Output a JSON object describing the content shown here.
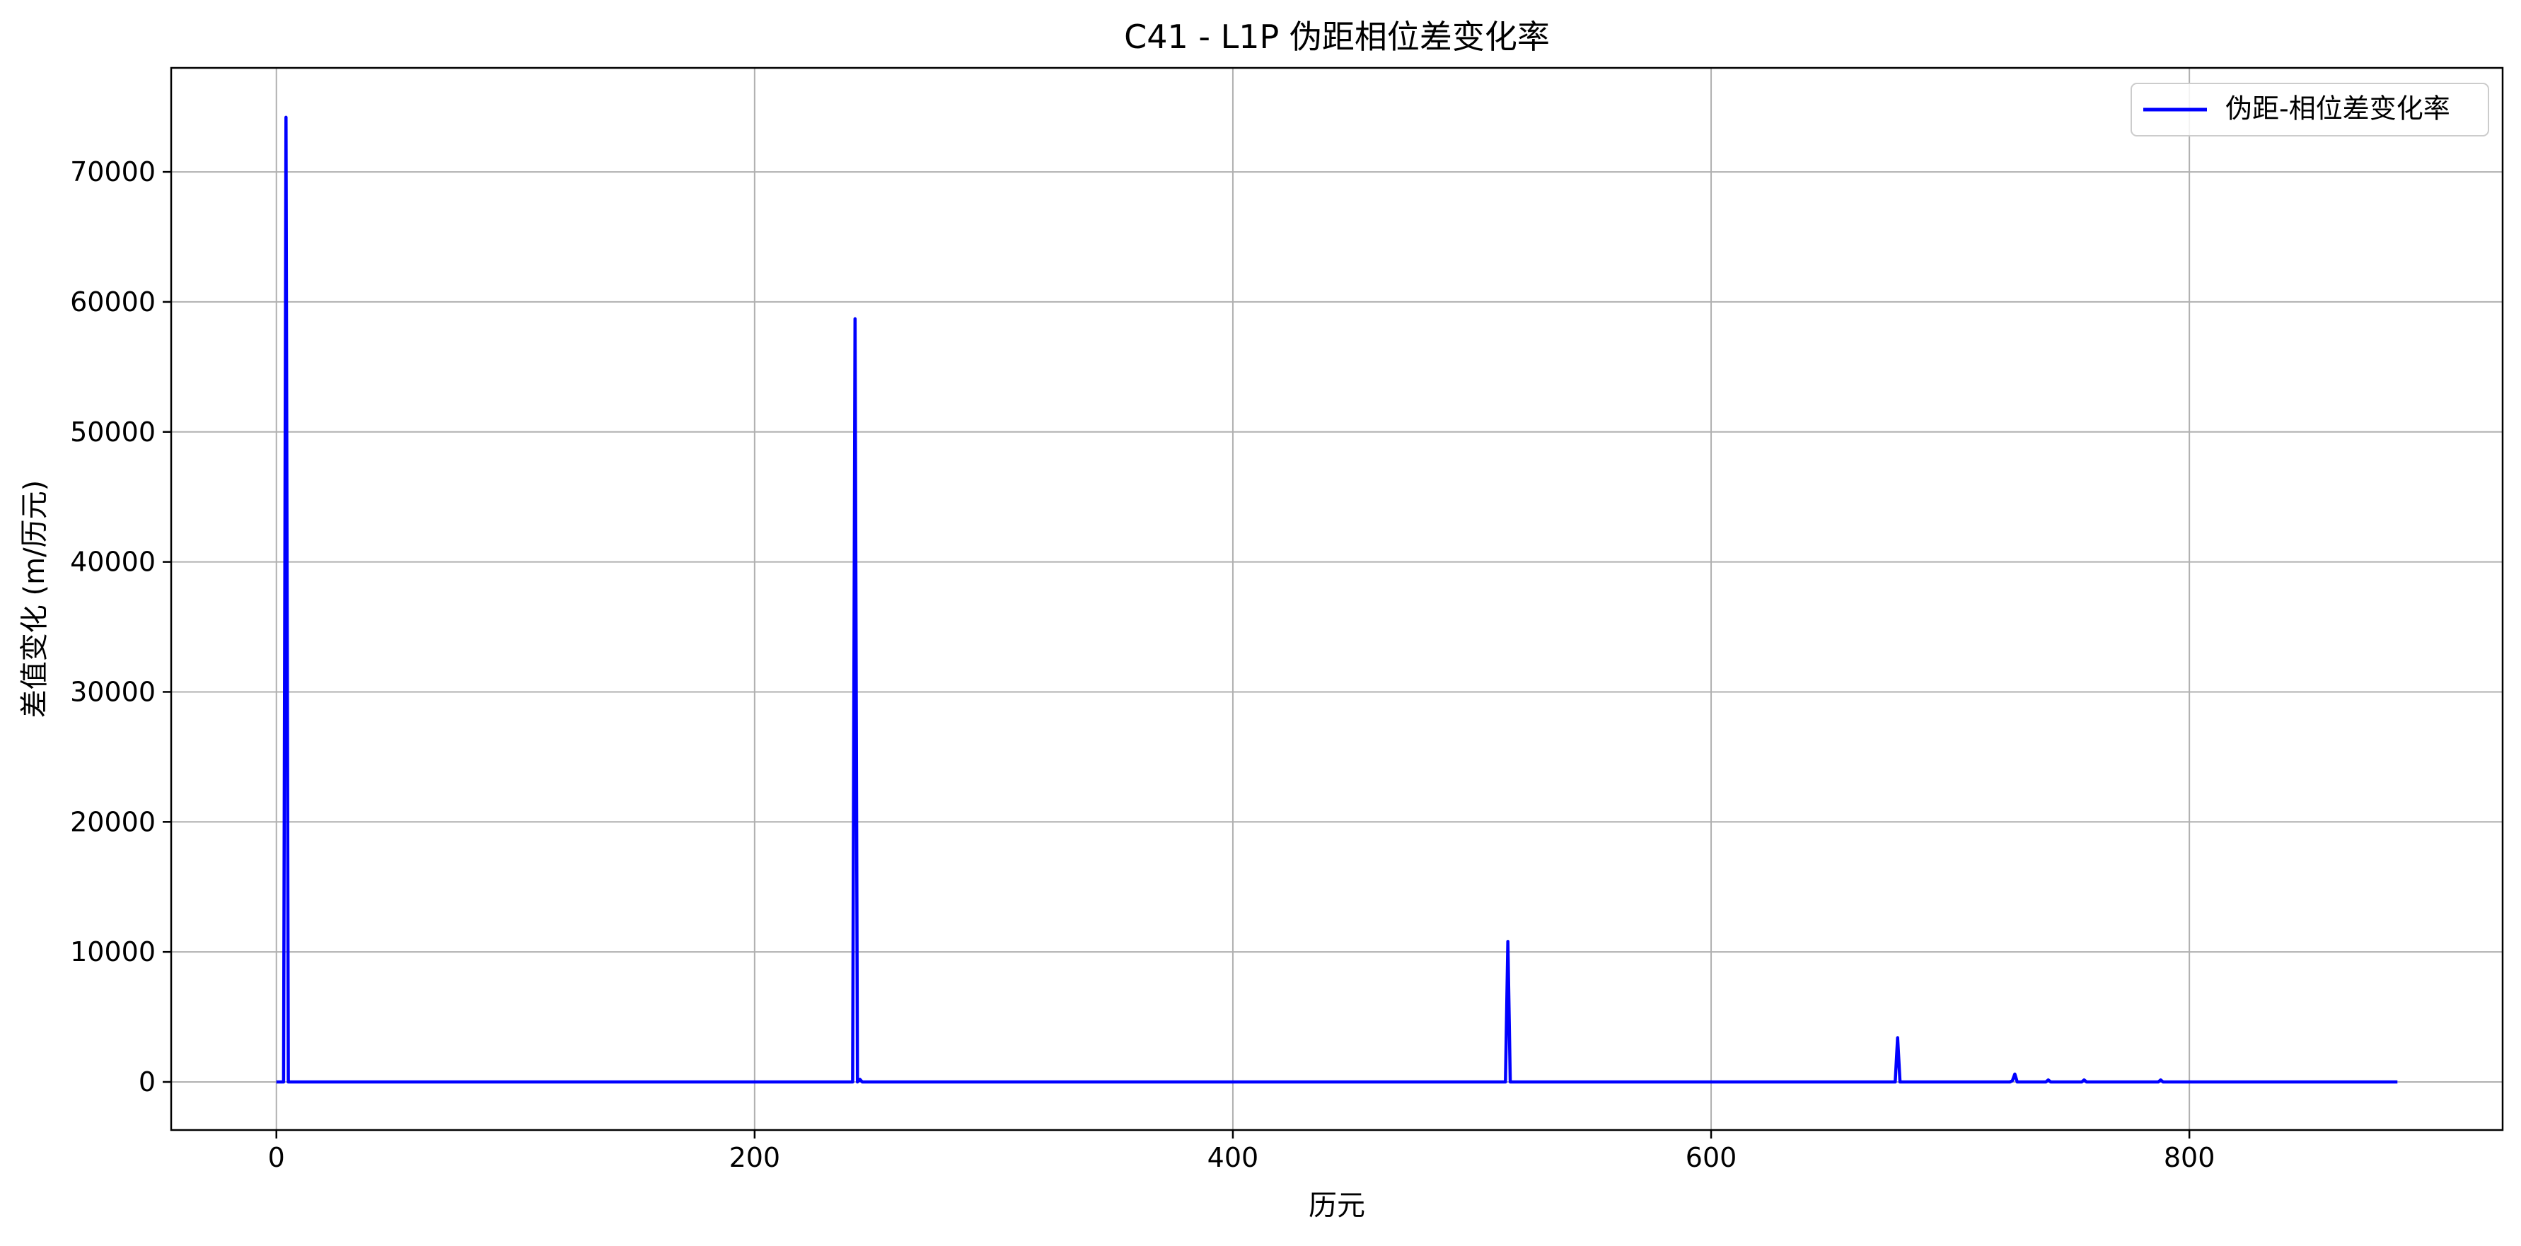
{
  "chart_data": {
    "type": "line",
    "title": "C41 - L1P 伪距相位差变化率",
    "xlabel": "历元",
    "ylabel": "差值变化 (m/历元)",
    "xlim": [
      -44,
      931
    ],
    "ylim": [
      -3700,
      78000
    ],
    "xticks": [
      0,
      200,
      400,
      600,
      800
    ],
    "yticks": [
      0,
      10000,
      20000,
      30000,
      40000,
      50000,
      60000,
      70000
    ],
    "grid": true,
    "legend_position": "upper right",
    "series": [
      {
        "name": "伪距-相位差变化率",
        "color": "#0000ff",
        "x": [
          0,
          3,
          4,
          5,
          6,
          7,
          240,
          241,
          242,
          243,
          244,
          245,
          246,
          247,
          514,
          515,
          516,
          517,
          677,
          678,
          679,
          680,
          725,
          726,
          727,
          728,
          740,
          741,
          742,
          755,
          756,
          757,
          787,
          788,
          789,
          815,
          833,
          887
        ],
        "y": [
          0,
          0,
          74200,
          0,
          0,
          0,
          0,
          0,
          58700,
          0,
          200,
          0,
          0,
          0,
          0,
          10800,
          0,
          0,
          0,
          3400,
          0,
          0,
          0,
          100,
          600,
          0,
          0,
          150,
          0,
          0,
          150,
          0,
          0,
          150,
          0,
          0,
          0,
          0
        ]
      }
    ]
  }
}
